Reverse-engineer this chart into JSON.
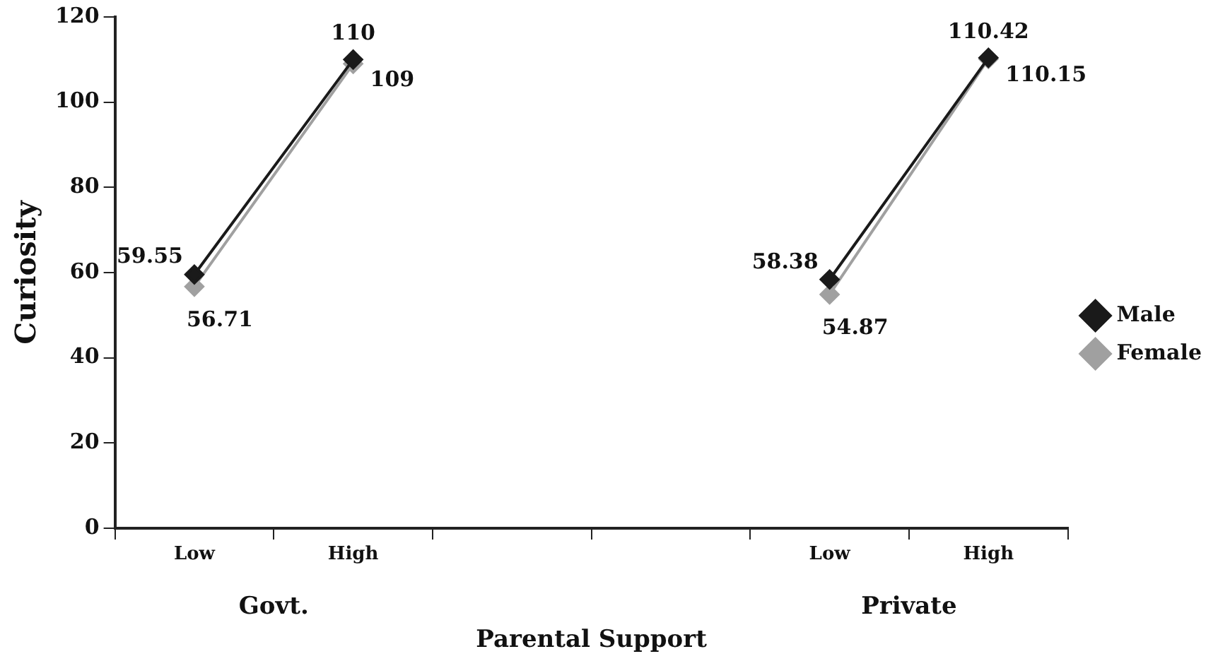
{
  "chart_data": {
    "type": "line",
    "xlabel": "Parental Support",
    "ylabel": "Curiosity",
    "categories": [
      "Low",
      "High",
      null,
      null,
      "Low",
      "High"
    ],
    "series": [
      {
        "name": "Male",
        "color": "#1a1a1a",
        "values": [
          59.55,
          110,
          null,
          null,
          58.38,
          110.42
        ]
      },
      {
        "name": "Female",
        "color": "#a0a0a0",
        "values": [
          56.71,
          109,
          null,
          null,
          54.87,
          110.15
        ]
      }
    ],
    "ylim": [
      0,
      120
    ],
    "yticks": [
      0,
      20,
      40,
      60,
      80,
      100,
      120
    ],
    "annotations": [
      "Govt.",
      "Private"
    ],
    "data_labels": true,
    "grid": false,
    "legend": "right",
    "marker": "diamond",
    "line_style": "solid"
  }
}
